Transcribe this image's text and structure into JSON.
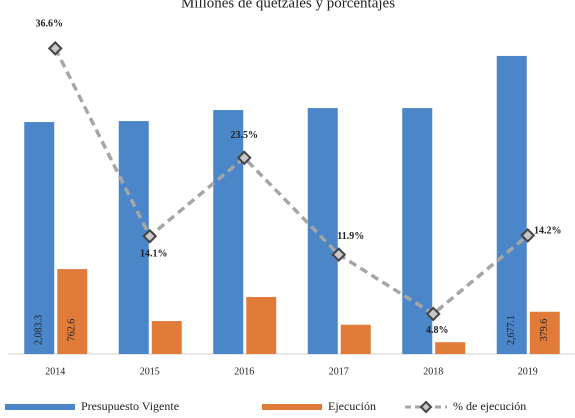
{
  "chart_data": {
    "type": "bar",
    "title": "Millones de quetzales y porcentajes",
    "categories": [
      "2014",
      "2015",
      "2016",
      "2017",
      "2018",
      "2019"
    ],
    "series": [
      {
        "name": "Presupuesto Vigente",
        "color": "#4a86c8",
        "values": [
          2083.3,
          2092,
          2191,
          2209,
          2209,
          2677.1
        ],
        "value_labels": [
          "2,083.3",
          null,
          null,
          null,
          null,
          "2,677.1"
        ]
      },
      {
        "name": "Ejecución",
        "color": "#e07b39",
        "values": [
          762.6,
          296,
          512,
          263,
          106,
          379.6
        ],
        "value_labels": [
          "762.6",
          null,
          null,
          null,
          null,
          "379.6"
        ]
      },
      {
        "name": "% de ejecución",
        "type": "line",
        "axis": "y2",
        "color": "#a6a6a6",
        "values": [
          36.6,
          14.1,
          23.5,
          11.9,
          4.8,
          14.2
        ],
        "value_labels": [
          "36.6%",
          "14.1%",
          "23.5%",
          "11.9%",
          "4.8%",
          "14.2%"
        ]
      }
    ],
    "ylim": [
      0,
      3000
    ],
    "y2lim": [
      0,
      40
    ]
  }
}
